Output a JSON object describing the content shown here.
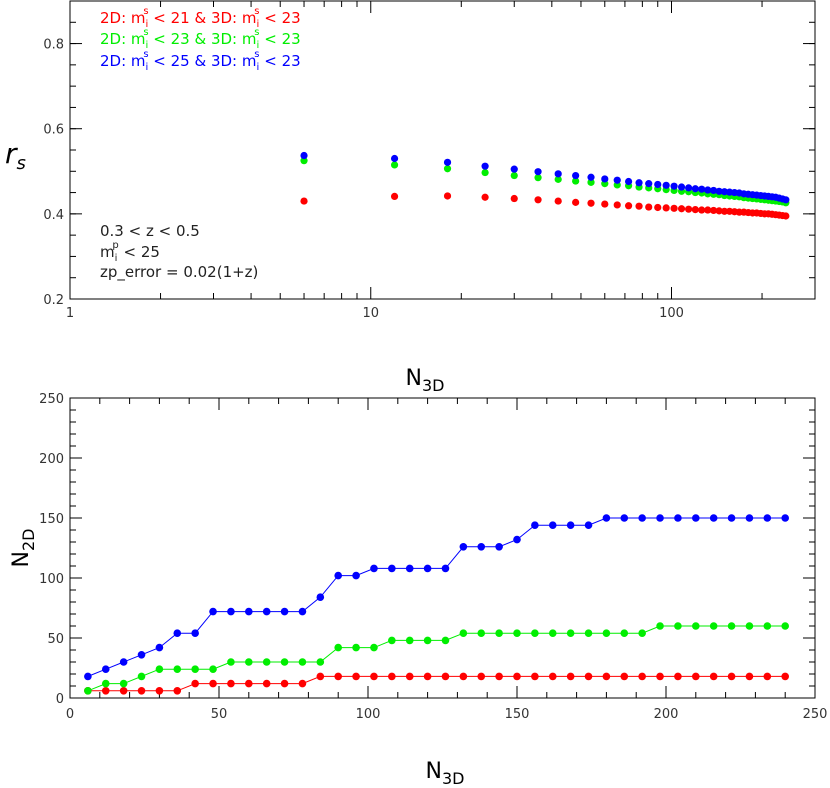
{
  "chart_data": [
    {
      "type": "scatter",
      "xscale": "log",
      "xlim": [
        1,
        300
      ],
      "ylim": [
        0.2,
        0.9
      ],
      "xticks": [
        1,
        10,
        100
      ],
      "xtick_labels": [
        "1",
        "10",
        "100"
      ],
      "yticks": [
        0.2,
        0.4,
        0.6,
        0.8
      ],
      "ytick_labels": [
        "0.2",
        "0.4",
        "0.6",
        "0.8"
      ],
      "ylabel_symbol": "r",
      "ylabel_sub": "s",
      "xlabel_main": "N",
      "xlabel_sub": "3D",
      "legend_position": "top-left",
      "x": [
        6,
        12,
        18,
        24,
        30,
        36,
        42,
        48,
        54,
        60,
        66,
        72,
        78,
        84,
        90,
        96,
        102,
        108,
        114,
        120,
        126,
        132,
        138,
        144,
        150,
        156,
        162,
        168,
        174,
        180,
        186,
        192,
        198,
        204,
        210,
        216,
        222,
        228,
        234,
        240
      ],
      "series": [
        {
          "name": "2D: m_i^s < 21 & 3D: m_i^s < 23",
          "label": {
            "a": "2D: m",
            "a_sub": "i",
            "a_sup": "s",
            "b": "< 21 & 3D: m",
            "b_sub": "i",
            "b_sup": "s",
            "c": "< 23"
          },
          "color": "#ff0000",
          "values": [
            0.43,
            0.441,
            0.442,
            0.439,
            0.436,
            0.433,
            0.43,
            0.427,
            0.425,
            0.423,
            0.421,
            0.419,
            0.418,
            0.416,
            0.415,
            0.414,
            0.413,
            0.412,
            0.411,
            0.41,
            0.409,
            0.409,
            0.408,
            0.407,
            0.406,
            0.406,
            0.405,
            0.404,
            0.404,
            0.403,
            0.402,
            0.402,
            0.401,
            0.4,
            0.4,
            0.399,
            0.398,
            0.397,
            0.396,
            0.395
          ]
        },
        {
          "name": "2D: m_i^s < 23 & 3D: m_i^s < 23",
          "label": {
            "a": "2D: m",
            "a_sub": "i",
            "a_sup": "s",
            "b": "< 23 & 3D: m",
            "b_sub": "i",
            "b_sup": "s",
            "c": "< 23"
          },
          "color": "#00ee00",
          "values": [
            0.525,
            0.515,
            0.506,
            0.497,
            0.49,
            0.485,
            0.481,
            0.477,
            0.474,
            0.471,
            0.468,
            0.466,
            0.463,
            0.461,
            0.459,
            0.457,
            0.455,
            0.453,
            0.452,
            0.45,
            0.449,
            0.447,
            0.446,
            0.445,
            0.443,
            0.442,
            0.441,
            0.44,
            0.438,
            0.437,
            0.436,
            0.435,
            0.434,
            0.433,
            0.432,
            0.431,
            0.43,
            0.429,
            0.428,
            0.426
          ]
        },
        {
          "name": "2D: m_i^s < 25 & 3D: m_i^s < 23",
          "label": {
            "a": "2D: m",
            "a_sub": "i",
            "a_sup": "s",
            "b": "< 25 & 3D: m",
            "b_sub": "i",
            "b_sup": "s",
            "c": "< 23"
          },
          "color": "#0000ff",
          "values": [
            0.537,
            0.53,
            0.521,
            0.512,
            0.505,
            0.499,
            0.494,
            0.49,
            0.486,
            0.482,
            0.479,
            0.476,
            0.473,
            0.471,
            0.469,
            0.467,
            0.465,
            0.463,
            0.461,
            0.459,
            0.458,
            0.456,
            0.455,
            0.453,
            0.452,
            0.451,
            0.45,
            0.449,
            0.447,
            0.446,
            0.445,
            0.444,
            0.443,
            0.442,
            0.441,
            0.44,
            0.439,
            0.437,
            0.435,
            0.433
          ]
        }
      ],
      "annotations": [
        {
          "text": "0.3 < z < 0.5"
        },
        {
          "a": "m",
          "a_sub": "i",
          "a_sup": "p",
          "b": " < 25"
        },
        {
          "text": "zp_error = 0.02(1+z)"
        }
      ]
    },
    {
      "type": "line",
      "xlim": [
        0,
        250
      ],
      "ylim": [
        0,
        250
      ],
      "xticks": [
        0,
        50,
        100,
        150,
        200,
        250
      ],
      "xtick_labels": [
        "0",
        "50",
        "100",
        "150",
        "200",
        "250"
      ],
      "yticks": [
        0,
        50,
        100,
        150,
        200,
        250
      ],
      "ytick_labels": [
        "0",
        "50",
        "100",
        "150",
        "200",
        "250"
      ],
      "xlabel_main": "N",
      "xlabel_sub": "3D",
      "ylabel_main": "N",
      "ylabel_sub": "2D",
      "x": [
        6,
        12,
        18,
        24,
        30,
        36,
        42,
        48,
        54,
        60,
        66,
        72,
        78,
        84,
        90,
        96,
        102,
        108,
        114,
        120,
        126,
        132,
        138,
        144,
        150,
        156,
        162,
        168,
        174,
        180,
        186,
        192,
        198,
        204,
        210,
        216,
        222,
        228,
        234,
        240
      ],
      "series": [
        {
          "color": "#ff0000",
          "values": [
            6,
            6,
            6,
            6,
            6,
            6,
            12,
            12,
            12,
            12,
            12,
            12,
            12,
            18,
            18,
            18,
            18,
            18,
            18,
            18,
            18,
            18,
            18,
            18,
            18,
            18,
            18,
            18,
            18,
            18,
            18,
            18,
            18,
            18,
            18,
            18,
            18,
            18,
            18,
            18
          ]
        },
        {
          "color": "#00ee00",
          "values": [
            6,
            12,
            12,
            18,
            24,
            24,
            24,
            24,
            30,
            30,
            30,
            30,
            30,
            30,
            42,
            42,
            42,
            48,
            48,
            48,
            48,
            54,
            54,
            54,
            54,
            54,
            54,
            54,
            54,
            54,
            54,
            54,
            60,
            60,
            60,
            60,
            60,
            60,
            60,
            60
          ]
        },
        {
          "color": "#0000ff",
          "values": [
            18,
            24,
            30,
            36,
            42,
            54,
            54,
            72,
            72,
            72,
            72,
            72,
            72,
            84,
            102,
            102,
            108,
            108,
            108,
            108,
            108,
            126,
            126,
            126,
            132,
            144,
            144,
            144,
            144,
            150,
            150,
            150,
            150,
            150,
            150,
            150,
            150,
            150,
            150,
            150
          ]
        }
      ]
    }
  ]
}
